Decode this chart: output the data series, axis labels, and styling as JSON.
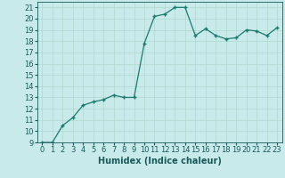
{
  "x": [
    0,
    1,
    2,
    3,
    4,
    5,
    6,
    7,
    8,
    9,
    10,
    11,
    12,
    13,
    14,
    15,
    16,
    17,
    18,
    19,
    20,
    21,
    22,
    23
  ],
  "y": [
    9,
    9,
    10.5,
    11.2,
    12.3,
    12.6,
    12.8,
    13.2,
    13.0,
    13.0,
    17.8,
    20.2,
    20.4,
    21.0,
    21.0,
    18.5,
    19.1,
    18.5,
    18.2,
    18.3,
    19.0,
    18.9,
    18.5,
    19.2
  ],
  "xlabel": "Humidex (Indice chaleur)",
  "ylim": [
    9,
    21.5
  ],
  "xlim": [
    -0.5,
    23.5
  ],
  "yticks": [
    9,
    10,
    11,
    12,
    13,
    14,
    15,
    16,
    17,
    18,
    19,
    20,
    21
  ],
  "xticks": [
    0,
    1,
    2,
    3,
    4,
    5,
    6,
    7,
    8,
    9,
    10,
    11,
    12,
    13,
    14,
    15,
    16,
    17,
    18,
    19,
    20,
    21,
    22,
    23
  ],
  "line_color": "#1a7a6e",
  "marker_color": "#1a7a6e",
  "bg_color": "#c8eaea",
  "grid_color": "#b0d8d0",
  "text_color": "#1a5a5a",
  "xlabel_fontsize": 7,
  "tick_fontsize": 6
}
